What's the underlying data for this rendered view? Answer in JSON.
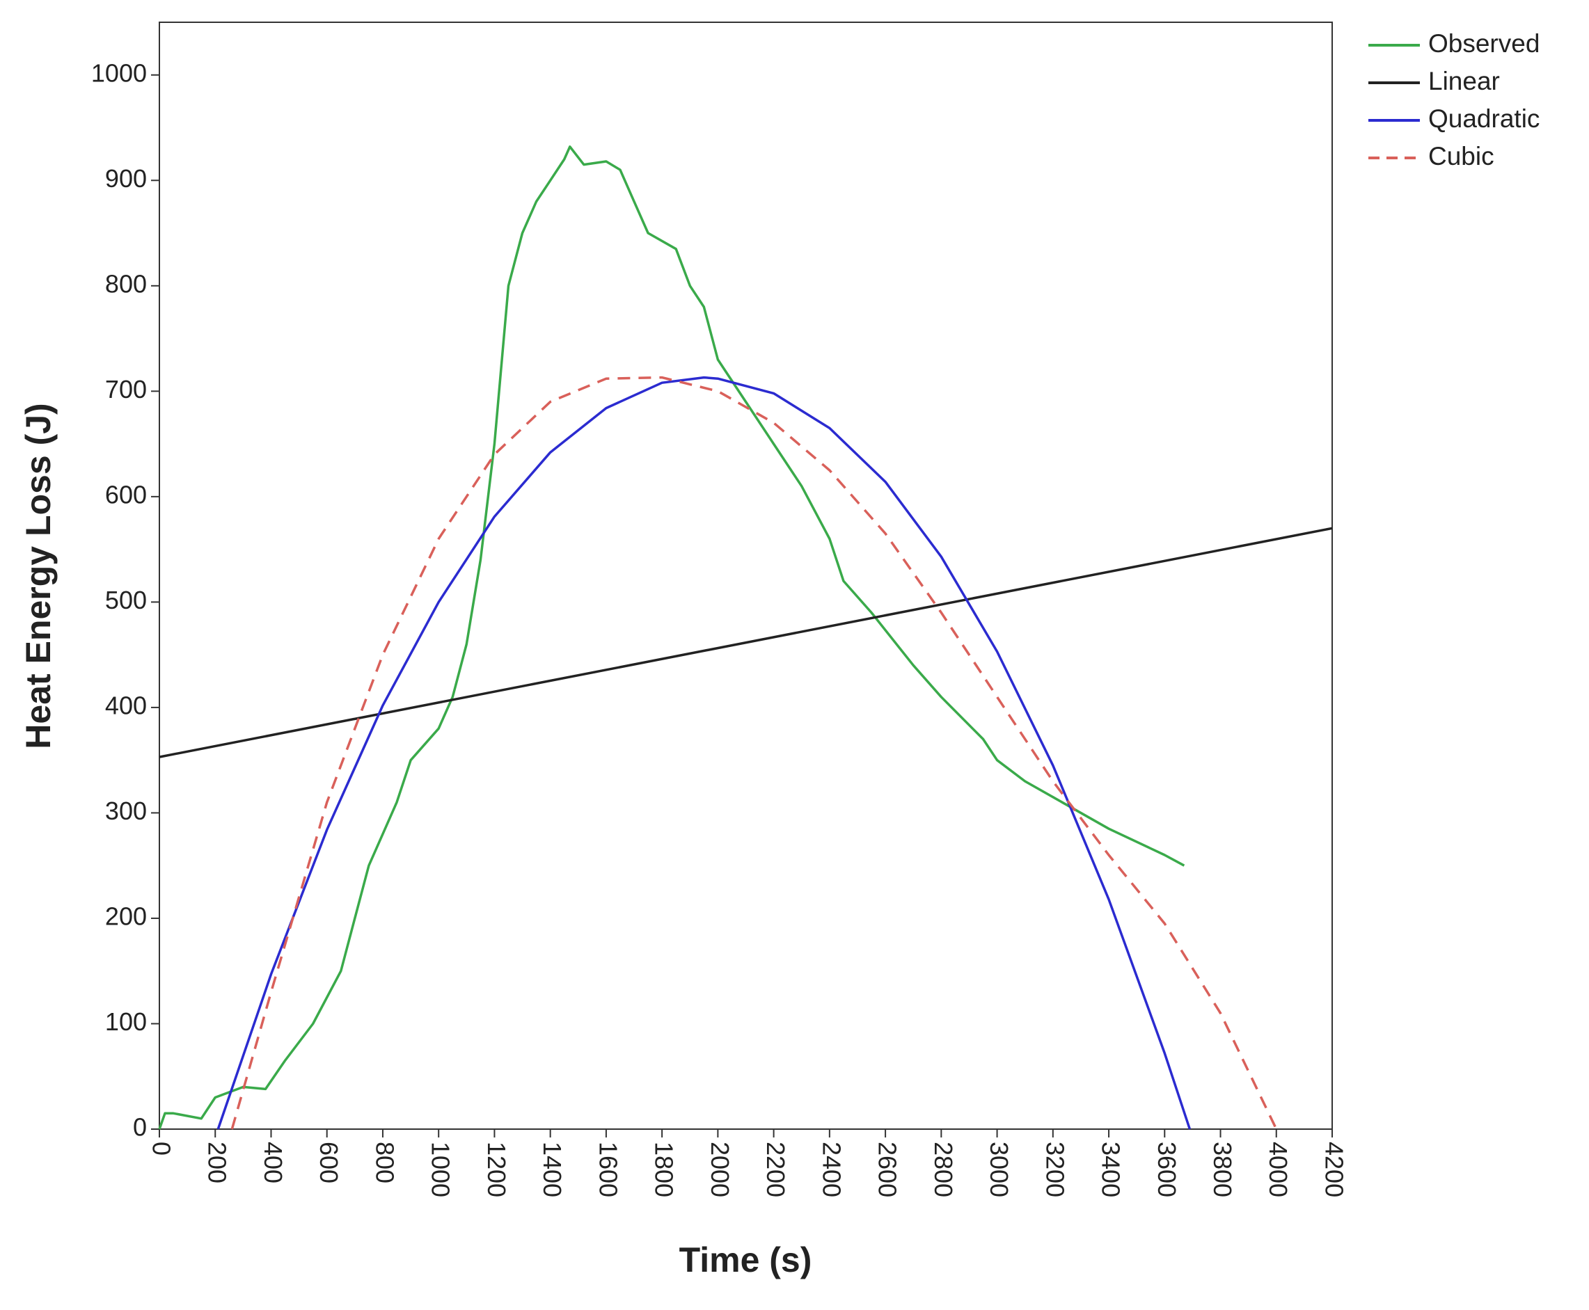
{
  "chart_data": {
    "type": "line",
    "x_label": "Time (s)",
    "y_label": "Heat Energy Loss (J)",
    "xlim": [
      0,
      4200
    ],
    "xticks": [
      0,
      200,
      400,
      600,
      800,
      1000,
      1200,
      1400,
      1600,
      1800,
      2000,
      2200,
      2400,
      2600,
      2800,
      3000,
      3200,
      3400,
      3600,
      3800,
      4000,
      4200
    ],
    "ylim": [
      0,
      1050
    ],
    "yticks": [
      0,
      100,
      200,
      300,
      400,
      500,
      600,
      700,
      800,
      900,
      1000
    ],
    "grid": false,
    "legend": "outside right top",
    "series": [
      {
        "name": "Observed",
        "color": "#3aaa4a",
        "dash": "solid",
        "x": [
          0,
          20,
          50,
          150,
          200,
          300,
          380,
          450,
          550,
          650,
          700,
          750,
          800,
          850,
          900,
          1000,
          1050,
          1100,
          1150,
          1200,
          1250,
          1300,
          1350,
          1400,
          1450,
          1470,
          1520,
          1600,
          1650,
          1700,
          1750,
          1850,
          1900,
          1950,
          2000,
          2100,
          2200,
          2300,
          2400,
          2450,
          2550,
          2700,
          2800,
          2950,
          3000,
          3100,
          3200,
          3400,
          3600,
          3670
        ],
        "values": [
          0,
          15,
          15,
          10,
          30,
          40,
          38,
          65,
          100,
          150,
          200,
          250,
          280,
          310,
          350,
          380,
          410,
          460,
          540,
          650,
          800,
          850,
          880,
          900,
          920,
          932,
          915,
          918,
          910,
          880,
          850,
          835,
          800,
          780,
          730,
          690,
          650,
          610,
          560,
          520,
          490,
          440,
          410,
          370,
          350,
          330,
          315,
          285,
          260,
          250
        ]
      },
      {
        "name": "Linear",
        "color": "#222222",
        "dash": "solid",
        "x": [
          0,
          4200
        ],
        "values": [
          353,
          570
        ]
      },
      {
        "name": "Quadratic",
        "color": "#2b2bd0",
        "dash": "solid",
        "x": [
          210,
          400,
          600,
          800,
          1000,
          1200,
          1400,
          1600,
          1800,
          1950,
          2000,
          2200,
          2400,
          2600,
          2800,
          3000,
          3200,
          3400,
          3600,
          3690
        ],
        "values": [
          0,
          147,
          284,
          402,
          500,
          581,
          642,
          684,
          708,
          713,
          712,
          698,
          665,
          614,
          543,
          453,
          345,
          218,
          72,
          0
        ]
      },
      {
        "name": "Cubic",
        "color": "#d9605a",
        "dash": "dashed",
        "x": [
          260,
          400,
          600,
          800,
          1000,
          1200,
          1400,
          1600,
          1800,
          2000,
          2200,
          2400,
          2600,
          2800,
          3000,
          3200,
          3400,
          3600,
          3800,
          4000
        ],
        "values": [
          0,
          130,
          310,
          450,
          560,
          640,
          690,
          712,
          713,
          700,
          670,
          625,
          565,
          490,
          410,
          330,
          260,
          195,
          110,
          0
        ]
      }
    ]
  }
}
